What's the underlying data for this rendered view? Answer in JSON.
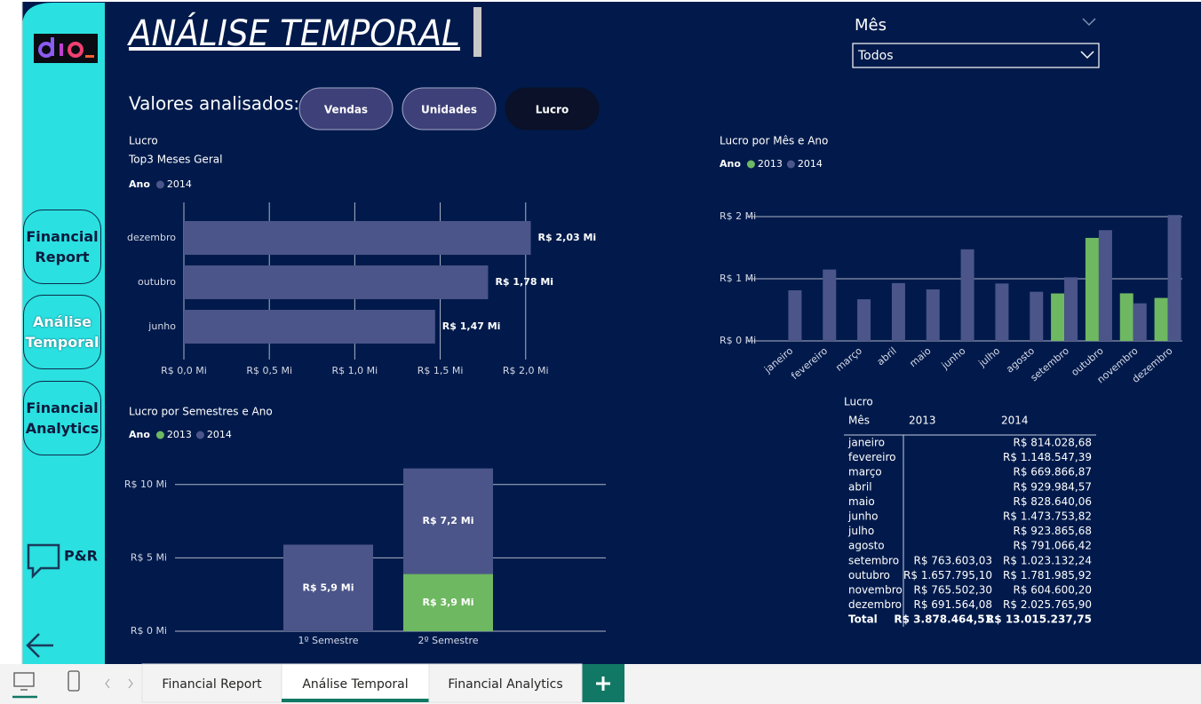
{
  "header": {
    "title": "ANÁLISE TEMPORAL"
  },
  "sidebar": {
    "buttons": [
      "Financial Report",
      "Análise Temporal",
      "Financial Analytics"
    ],
    "active": 1,
    "qa": "P&R"
  },
  "filter": {
    "label": "Mês",
    "value": "Todos"
  },
  "measure_selector": {
    "label": "Valores analisados:",
    "options": [
      "Vendas",
      "Unidades",
      "Lucro"
    ],
    "selected": 2
  },
  "chart_data": [
    {
      "type": "barh",
      "title": "Lucro",
      "subtitle": "Top3 Meses Geral",
      "legend_title": "Ano",
      "categories": [
        "dezembro",
        "outubro",
        "junho"
      ],
      "series": [
        {
          "name": "2014",
          "color": "#4b5589",
          "values": [
            2.03,
            1.78,
            1.47
          ],
          "value_labels": [
            "R$ 2,03 Mi",
            "R$ 1,78 Mi",
            "R$ 1,47 Mi"
          ]
        }
      ],
      "xlim": [
        0,
        2.1
      ],
      "xticks": [
        {
          "value": 0,
          "label": "R$ 0,0 Mi"
        },
        {
          "value": 0.5,
          "label": "R$ 0,5 Mi"
        },
        {
          "value": 1,
          "label": "R$ 1,0 Mi"
        },
        {
          "value": 1.5,
          "label": "R$ 1,5 Mi"
        },
        {
          "value": 2,
          "label": "R$ 2,0 Mi"
        }
      ],
      "grid": true
    },
    {
      "type": "bar",
      "title": "Lucro por Mês e Ano",
      "legend_title": "Ano",
      "categories": [
        "janeiro",
        "fevereiro",
        "março",
        "abril",
        "maio",
        "junho",
        "julho",
        "agosto",
        "setembro",
        "outubro",
        "novembro",
        "dezembro"
      ],
      "series": [
        {
          "name": "2013",
          "color": "#6fb862",
          "values": [
            null,
            null,
            null,
            null,
            null,
            null,
            null,
            null,
            0.76360303,
            1.6577951,
            0.7655023,
            0.69156408
          ]
        },
        {
          "name": "2014",
          "color": "#4b5589",
          "values": [
            0.81402868,
            1.14854739,
            0.66986687,
            0.92998457,
            0.82864006,
            1.47375382,
            0.92386568,
            0.79106642,
            1.02313224,
            1.78198592,
            0.6046002,
            2.0257659
          ]
        }
      ],
      "ylim": [
        0,
        2.1
      ],
      "yticks": [
        {
          "value": 0,
          "label": "R$ 0 Mi"
        },
        {
          "value": 1,
          "label": "R$ 1 Mi"
        },
        {
          "value": 2,
          "label": "R$ 2 Mi"
        }
      ],
      "grid": true
    },
    {
      "type": "stacked_bar",
      "title": "Lucro por Semestres e Ano",
      "legend_title": "Ano",
      "categories": [
        "1º Semestre",
        "2º Semestre"
      ],
      "series": [
        {
          "name": "2013",
          "color": "#6fb862",
          "values": [
            null,
            3.9
          ],
          "value_labels": [
            null,
            "R$ 3,9 Mi"
          ]
        },
        {
          "name": "2014",
          "color": "#4b5589",
          "values": [
            5.9,
            7.2
          ],
          "value_labels": [
            "R$ 5,9 Mi",
            "R$ 7,2 Mi"
          ]
        }
      ],
      "ylim": [
        0,
        11.5
      ],
      "yticks": [
        {
          "value": 0,
          "label": "R$ 0 Mi"
        },
        {
          "value": 5,
          "label": "R$ 5 Mi"
        },
        {
          "value": 10,
          "label": "R$ 10 Mi"
        }
      ],
      "grid": true
    }
  ],
  "table": {
    "title": "Lucro",
    "columns": [
      "Mês",
      "2013",
      "2014"
    ],
    "rows": [
      [
        "janeiro",
        "",
        "R$ 814.028,68"
      ],
      [
        "fevereiro",
        "",
        "R$ 1.148.547,39"
      ],
      [
        "março",
        "",
        "R$ 669.866,87"
      ],
      [
        "abril",
        "",
        "R$ 929.984,57"
      ],
      [
        "maio",
        "",
        "R$ 828.640,06"
      ],
      [
        "junho",
        "",
        "R$ 1.473.753,82"
      ],
      [
        "julho",
        "",
        "R$ 923.865,68"
      ],
      [
        "agosto",
        "",
        "R$ 791.066,42"
      ],
      [
        "setembro",
        "R$ 763.603,03",
        "R$ 1.023.132,24"
      ],
      [
        "outubro",
        "R$ 1.657.795,10",
        "R$ 1.781.985,92"
      ],
      [
        "novembro",
        "R$ 765.502,30",
        "R$ 604.600,20"
      ],
      [
        "dezembro",
        "R$ 691.564,08",
        "R$ 2.025.765,90"
      ]
    ],
    "total": [
      "Total",
      "R$ 3.878.464,51",
      "R$ 13.015.237,75"
    ]
  },
  "tabs": {
    "items": [
      "Financial Report",
      "Análise Temporal",
      "Financial Analytics"
    ],
    "active": 1
  }
}
